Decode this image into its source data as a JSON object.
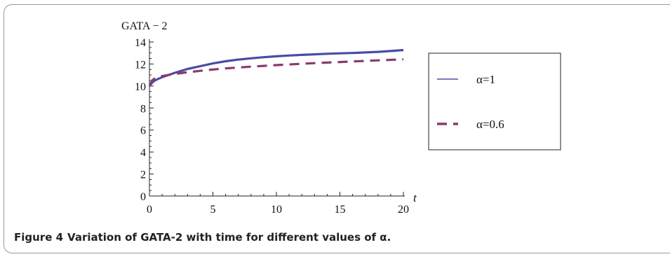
{
  "caption": {
    "label": "Figure 4",
    "text": "Variation of GATA-2 with time for different values of α."
  },
  "chart_data": {
    "type": "line",
    "ylabel": "GATA − 2",
    "xlabel": "t",
    "xlim": [
      0,
      20
    ],
    "ylim": [
      0,
      14
    ],
    "x_ticks": [
      0,
      5,
      10,
      15,
      20
    ],
    "y_ticks": [
      0,
      2,
      4,
      6,
      8,
      10,
      12,
      14
    ],
    "grid": false,
    "legend_position": "right",
    "series": [
      {
        "name": "α=1",
        "style": "solid",
        "color": "#4b4ba6",
        "x": [
          0,
          0.25,
          0.5,
          1,
          1.5,
          2,
          3,
          4,
          5,
          6,
          7,
          8,
          9,
          10,
          11,
          12,
          13,
          14,
          15,
          16,
          17,
          18,
          19,
          20
        ],
        "y": [
          10.0,
          10.35,
          10.55,
          10.8,
          11.0,
          11.2,
          11.55,
          11.8,
          12.05,
          12.25,
          12.4,
          12.52,
          12.62,
          12.7,
          12.77,
          12.83,
          12.88,
          12.93,
          12.97,
          13.0,
          13.05,
          13.1,
          13.18,
          13.27
        ]
      },
      {
        "name": "α=0.6",
        "style": "dashed",
        "color": "#8b3a6e",
        "x": [
          0,
          0.25,
          0.5,
          1,
          1.5,
          2,
          3,
          4,
          5,
          6,
          7,
          8,
          9,
          10,
          11,
          12,
          13,
          14,
          15,
          16,
          17,
          18,
          19,
          20
        ],
        "y": [
          10.0,
          10.55,
          10.75,
          10.9,
          11.0,
          11.1,
          11.25,
          11.38,
          11.5,
          11.6,
          11.68,
          11.76,
          11.83,
          11.9,
          11.96,
          12.02,
          12.08,
          12.13,
          12.18,
          12.23,
          12.28,
          12.33,
          12.38,
          12.43
        ]
      }
    ]
  }
}
